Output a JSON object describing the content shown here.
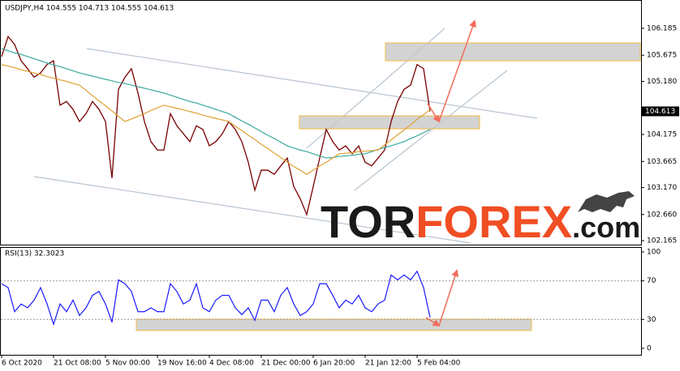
{
  "chart_data": [
    {
      "type": "line",
      "title": "USDJPY,H4  104.555 104.713 104.555 104.613",
      "ylim": [
        102.09,
        106.69
      ],
      "yticks": [
        106.185,
        105.675,
        {
          "value": 105.18,
          "label": "105.180"
        },
        104.175,
        103.665,
        {
          "value": 103.17,
          "label": "103.170"
        },
        {
          "value": 102.66,
          "label": "102.660"
        },
        102.165
      ],
      "current_price": 104.613,
      "grid": false,
      "series": [
        {
          "color": "#7a0000",
          "values": [
            105.65,
            106.03,
            105.88,
            105.57,
            105.42,
            105.26,
            105.34,
            105.5,
            105.57,
            104.73,
            104.8,
            104.65,
            104.42,
            104.57,
            104.8,
            104.65,
            104.42,
            103.35,
            105.03,
            105.26,
            105.42,
            104.96,
            104.42,
            104.04,
            103.88,
            103.88,
            104.57,
            104.34,
            104.19,
            104.04,
            104.34,
            104.27,
            103.96,
            104.04,
            104.19,
            104.42,
            104.27,
            104.04,
            103.65,
            103.12,
            103.5,
            103.5,
            103.42,
            103.58,
            103.73,
            103.19,
            102.96,
            102.66,
            103.19,
            103.73,
            104.27,
            104.04,
            103.88,
            103.96,
            103.81,
            103.96,
            103.65,
            103.58,
            103.73,
            103.88,
            104.42,
            104.8,
            105.03,
            105.11,
            105.5,
            105.42,
            104.61
          ]
        },
        {
          "color": "#3aa89c",
          "values": [
            105.8,
            105.76,
            105.72,
            105.69,
            105.65,
            105.61,
            105.57,
            105.53,
            105.49,
            105.46,
            105.42,
            105.38,
            105.34,
            105.31,
            105.28,
            105.25,
            105.22,
            105.19,
            105.16,
            105.14,
            105.11,
            105.08,
            105.05,
            105.02,
            104.99,
            104.96,
            104.92,
            104.88,
            104.84,
            104.8,
            104.77,
            104.73,
            104.69,
            104.65,
            104.61,
            104.57,
            104.5,
            104.43,
            104.37,
            104.3,
            104.23,
            104.16,
            104.1,
            104.03,
            103.96,
            103.92,
            103.88,
            103.85,
            103.81,
            103.77,
            103.73,
            103.74,
            103.76,
            103.77,
            103.78,
            103.8,
            103.81,
            103.85,
            103.89,
            103.93,
            103.96,
            104.0,
            104.04,
            104.1,
            104.15,
            104.21,
            104.27
          ]
        },
        {
          "color": "#e0a030",
          "values": [
            105.5,
            105.47,
            105.44,
            105.4,
            105.37,
            105.34,
            105.31,
            105.27,
            105.24,
            105.21,
            105.18,
            105.14,
            105.11,
            105.01,
            104.91,
            104.81,
            104.72,
            104.62,
            104.52,
            104.42,
            104.47,
            104.52,
            104.57,
            104.63,
            104.68,
            104.73,
            104.7,
            104.67,
            104.64,
            104.61,
            104.58,
            104.54,
            104.51,
            104.48,
            104.45,
            104.42,
            104.33,
            104.25,
            104.16,
            104.08,
            103.99,
            103.91,
            103.82,
            103.74,
            103.65,
            103.57,
            103.5,
            103.42,
            103.5,
            103.58,
            103.65,
            103.73,
            103.81,
            103.82,
            103.83,
            103.85,
            103.86,
            103.87,
            103.88,
            103.98,
            104.07,
            104.17,
            104.26,
            104.36,
            104.46,
            104.55,
            104.65
          ]
        }
      ],
      "watermark": {
        "part1": "TOR",
        "part2": "FOREX",
        "part3": ".com"
      }
    },
    {
      "type": "line",
      "title": "RSI(13) 32.3023",
      "ylim": [
        0,
        100
      ],
      "yticks": [
        100,
        70,
        30,
        0
      ],
      "grid": true,
      "categories": [
        "6 Oct 2020",
        null,
        null,
        null,
        null,
        null,
        null,
        null,
        "21 Oct 08:00",
        null,
        null,
        null,
        null,
        null,
        null,
        null,
        "5 Nov 00:00",
        null,
        null,
        null,
        null,
        null,
        null,
        null,
        "19 Nov 16:00",
        null,
        null,
        null,
        null,
        null,
        null,
        null,
        "4 Dec 08:00",
        null,
        null,
        null,
        null,
        null,
        null,
        null,
        "21 Dec 00:00",
        null,
        null,
        null,
        null,
        null,
        null,
        null,
        "6 Jan 20:00",
        null,
        null,
        null,
        null,
        null,
        null,
        null,
        "21 Jan 12:00",
        null,
        null,
        null,
        null,
        null,
        null,
        null,
        "5 Feb 04:00",
        null,
        null
      ],
      "series": [
        {
          "color": "#1a1aff",
          "values": [
            67,
            63,
            38,
            46,
            42,
            50,
            63,
            46,
            25,
            46,
            38,
            50,
            34,
            42,
            55,
            59,
            46,
            27,
            71,
            67,
            59,
            38,
            38,
            42,
            38,
            38,
            67,
            59,
            46,
            50,
            67,
            42,
            38,
            50,
            55,
            55,
            42,
            35,
            42,
            29,
            50,
            50,
            38,
            55,
            63,
            46,
            34,
            38,
            46,
            67,
            67,
            55,
            42,
            50,
            46,
            55,
            42,
            38,
            46,
            50,
            76,
            71,
            76,
            71,
            80,
            63,
            32
          ]
        }
      ]
    }
  ]
}
